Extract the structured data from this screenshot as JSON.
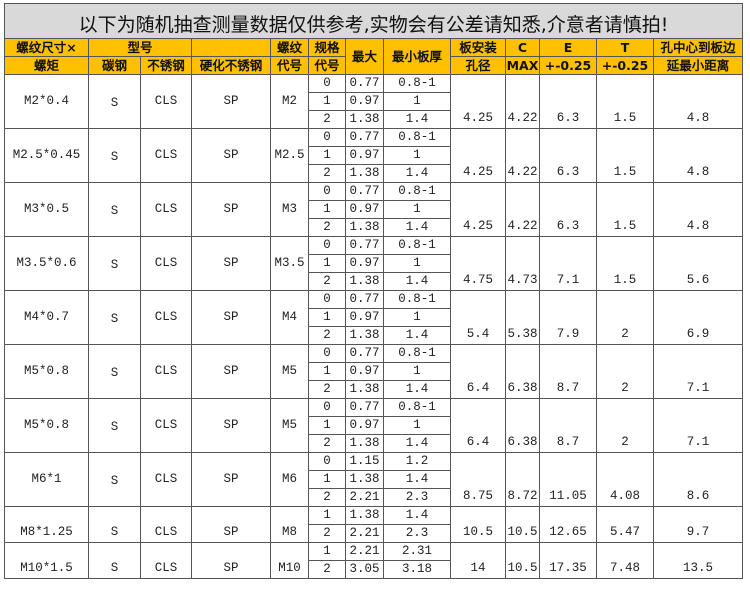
{
  "title": "以下为随机抽查测量数据仅供参考,实物会有公差请知悉,介意者请慎拍!",
  "header": {
    "size_l1": "螺纹尺寸×",
    "size_l2": "螺矩",
    "model": "型号",
    "carbon": "碳钢",
    "stainless": "不锈钢",
    "hardened": "硬化不锈钢",
    "thread_l1": "螺纹",
    "thread_l2": "代号",
    "spec_l1": "规格",
    "spec_l2": "代号",
    "max": "最大",
    "min_thick": "最小板厚",
    "hole_l1": "板安装",
    "hole_l2": "孔径",
    "c_l1": "C",
    "c_l2": "MAX",
    "e_l1": "E",
    "e_l2": "+-0.25",
    "t_l1": "T",
    "t_l2": "+-0.25",
    "edge_l1": "孔中心到板边",
    "edge_l2": "延最小距离"
  },
  "colors": {
    "title_bg": "#d9d9d9",
    "header_bg": "#ffc000"
  },
  "groups": [
    {
      "size": "M2*0.4",
      "carbon": "S",
      "stainless": "CLS",
      "hardened": "SP",
      "thread": "M2",
      "rows": [
        {
          "code": "0",
          "max": "0.77",
          "min": "0.8-1"
        },
        {
          "code": "1",
          "max": "0.97",
          "min": "1"
        },
        {
          "code": "2",
          "max": "1.38",
          "min": "1.4"
        }
      ],
      "hole": "4.25",
      "c": "4.22",
      "e": "6.3",
      "t": "1.5",
      "edge": "4.8"
    },
    {
      "size": "M2.5*0.45",
      "carbon": "S",
      "stainless": "CLS",
      "hardened": "SP",
      "thread": "M2.5",
      "rows": [
        {
          "code": "0",
          "max": "0.77",
          "min": "0.8-1"
        },
        {
          "code": "1",
          "max": "0.97",
          "min": "1"
        },
        {
          "code": "2",
          "max": "1.38",
          "min": "1.4"
        }
      ],
      "hole": "4.25",
      "c": "4.22",
      "e": "6.3",
      "t": "1.5",
      "edge": "4.8"
    },
    {
      "size": "M3*0.5",
      "carbon": "S",
      "stainless": "CLS",
      "hardened": "SP",
      "thread": "M3",
      "rows": [
        {
          "code": "0",
          "max": "0.77",
          "min": "0.8-1"
        },
        {
          "code": "1",
          "max": "0.97",
          "min": "1"
        },
        {
          "code": "2",
          "max": "1.38",
          "min": "1.4"
        }
      ],
      "hole": "4.25",
      "c": "4.22",
      "e": "6.3",
      "t": "1.5",
      "edge": "4.8"
    },
    {
      "size": "M3.5*0.6",
      "carbon": "S",
      "stainless": "CLS",
      "hardened": "SP",
      "thread": "M3.5",
      "rows": [
        {
          "code": "0",
          "max": "0.77",
          "min": "0.8-1"
        },
        {
          "code": "1",
          "max": "0.97",
          "min": "1"
        },
        {
          "code": "2",
          "max": "1.38",
          "min": "1.4"
        }
      ],
      "hole": "4.75",
      "c": "4.73",
      "e": "7.1",
      "t": "1.5",
      "edge": "5.6"
    },
    {
      "size": "M4*0.7",
      "carbon": "S",
      "stainless": "CLS",
      "hardened": "SP",
      "thread": "M4",
      "rows": [
        {
          "code": "0",
          "max": "0.77",
          "min": "0.8-1"
        },
        {
          "code": "1",
          "max": "0.97",
          "min": "1"
        },
        {
          "code": "2",
          "max": "1.38",
          "min": "1.4"
        }
      ],
      "hole": "5.4",
      "c": "5.38",
      "e": "7.9",
      "t": "2",
      "edge": "6.9"
    },
    {
      "size": "M5*0.8",
      "carbon": "S",
      "stainless": "CLS",
      "hardened": "SP",
      "thread": "M5",
      "rows": [
        {
          "code": "0",
          "max": "0.77",
          "min": "0.8-1"
        },
        {
          "code": "1",
          "max": "0.97",
          "min": "1"
        },
        {
          "code": "2",
          "max": "1.38",
          "min": "1.4"
        }
      ],
      "hole": "6.4",
      "c": "6.38",
      "e": "8.7",
      "t": "2",
      "edge": "7.1"
    },
    {
      "size": "M5*0.8",
      "carbon": "S",
      "stainless": "CLS",
      "hardened": "SP",
      "thread": "M5",
      "rows": [
        {
          "code": "0",
          "max": "0.77",
          "min": "0.8-1"
        },
        {
          "code": "1",
          "max": "0.97",
          "min": "1"
        },
        {
          "code": "2",
          "max": "1.38",
          "min": "1.4"
        }
      ],
      "hole": "6.4",
      "c": "6.38",
      "e": "8.7",
      "t": "2",
      "edge": "7.1"
    },
    {
      "size": "M6*1",
      "carbon": "S",
      "stainless": "CLS",
      "hardened": "SP",
      "thread": "M6",
      "rows": [
        {
          "code": "0",
          "max": "1.15",
          "min": "1.2"
        },
        {
          "code": "1",
          "max": "1.38",
          "min": "1.4"
        },
        {
          "code": "2",
          "max": "2.21",
          "min": "2.3"
        }
      ],
      "hole": "8.75",
      "c": "8.72",
      "e": "11.05",
      "t": "4.08",
      "edge": "8.6"
    },
    {
      "size": "M8*1.25",
      "carbon": "S",
      "stainless": "CLS",
      "hardened": "SP",
      "thread": "M8",
      "rows": [
        {
          "code": "1",
          "max": "1.38",
          "min": "1.4"
        },
        {
          "code": "2",
          "max": "2.21",
          "min": "2.3"
        }
      ],
      "hole": "10.5",
      "c": "10.5",
      "e": "12.65",
      "t": "5.47",
      "edge": "9.7"
    },
    {
      "size": "M10*1.5",
      "carbon": "S",
      "stainless": "CLS",
      "hardened": "SP",
      "thread": "M10",
      "rows": [
        {
          "code": "1",
          "max": "2.21",
          "min": "2.31"
        },
        {
          "code": "2",
          "max": "3.05",
          "min": "3.18"
        }
      ],
      "hole": "14",
      "c": "10.5",
      "e": "17.35",
      "t": "7.48",
      "edge": "13.5"
    }
  ]
}
